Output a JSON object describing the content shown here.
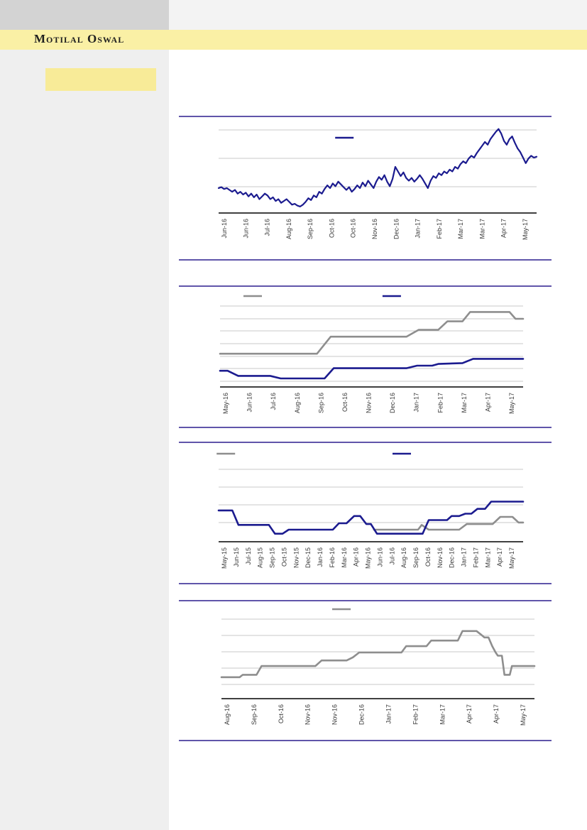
{
  "page": {
    "brand": "Motilal Oswal"
  },
  "colors": {
    "brand_band": "#FAF0A5",
    "top_left_box": "#D3D3D3",
    "top_right_box": "#F3F3F3",
    "sidebar": "#EFEFEF",
    "sidebar_highlight": "#F8EB98",
    "separator": "#6055AA",
    "navy": "#1B1B8F",
    "gray": "#8E8E8E",
    "gridline": "#C8C8C8",
    "axis": "#000000",
    "tick_label": "#3A3A3A"
  },
  "chart_data": [
    {
      "type": "line",
      "title": "",
      "grid": true,
      "y_axis_visible": false,
      "ylim": [
        0,
        100
      ],
      "x_labels": [
        "Jun-16",
        "Jun-16",
        "Jul-16",
        "Aug-16",
        "Sep-16",
        "Oct-16",
        "Oct-16",
        "Nov-16",
        "Dec-16",
        "Jan-17",
        "Feb-17",
        "Mar-17",
        "Mar-17",
        "Apr-17",
        "May-17"
      ],
      "legend": {
        "position": "top-center",
        "markers": [
          {
            "series": "series-navy",
            "color": "#1B1B8F",
            "x_frac": 0.427
          }
        ]
      },
      "series": [
        {
          "name": "series-navy",
          "color": "#1B1B8F",
          "values": [
            27,
            28,
            26,
            27,
            25,
            23,
            25,
            21,
            23,
            20,
            22,
            18,
            21,
            17,
            20,
            15,
            18,
            21,
            19,
            15,
            17,
            13,
            15,
            11,
            13,
            15,
            12,
            9,
            10,
            8,
            7,
            9,
            12,
            16,
            14,
            19,
            17,
            23,
            21,
            26,
            30,
            27,
            32,
            29,
            34,
            31,
            28,
            25,
            28,
            23,
            26,
            30,
            27,
            33,
            29,
            35,
            31,
            27,
            34,
            39,
            36,
            41,
            34,
            29,
            37,
            50,
            45,
            40,
            44,
            38,
            35,
            38,
            34,
            37,
            41,
            37,
            32,
            27,
            35,
            40,
            38,
            43,
            41,
            45,
            43,
            47,
            45,
            50,
            48,
            53,
            56,
            54,
            59,
            62,
            60,
            65,
            69,
            73,
            77,
            74,
            80,
            84,
            88,
            91,
            86,
            78,
            74,
            80,
            83,
            76,
            70,
            66,
            60,
            54,
            59,
            62,
            60,
            61
          ]
        }
      ]
    },
    {
      "type": "step-line",
      "title": "",
      "grid": true,
      "y_axis_visible": false,
      "ylim": [
        0,
        100
      ],
      "x_labels": [
        "May-16",
        "Jun-16",
        "Jul-16",
        "Aug-16",
        "Sep-16",
        "Oct-16",
        "Nov-16",
        "Dec-16",
        "Jan-17",
        "Feb-17",
        "Mar-17",
        "Apr-17",
        "May-17"
      ],
      "legend": {
        "position": "top",
        "markers": [
          {
            "series": "series-gray",
            "color": "#8E8E8E",
            "x_frac": 0.181
          },
          {
            "series": "series-navy",
            "color": "#1B1B8F",
            "x_frac": 0.554
          }
        ]
      },
      "series": [
        {
          "name": "series-gray",
          "color": "#8E8E8E",
          "points": [
            [
              0,
              39
            ],
            [
              0.32,
              39
            ],
            [
              0.365,
              59
            ],
            [
              0.615,
              59
            ],
            [
              0.655,
              67
            ],
            [
              0.72,
              67
            ],
            [
              0.75,
              77
            ],
            [
              0.8,
              77
            ],
            [
              0.825,
              88
            ],
            [
              0.955,
              88
            ],
            [
              0.975,
              80
            ],
            [
              1,
              80
            ]
          ]
        },
        {
          "name": "series-navy",
          "color": "#1B1B8F",
          "points": [
            [
              0,
              19
            ],
            [
              0.025,
              19
            ],
            [
              0.06,
              13
            ],
            [
              0.165,
              13
            ],
            [
              0.2,
              10
            ],
            [
              0.345,
              10
            ],
            [
              0.375,
              22
            ],
            [
              0.615,
              22
            ],
            [
              0.65,
              25
            ],
            [
              0.7,
              25
            ],
            [
              0.72,
              27
            ],
            [
              0.8,
              28
            ],
            [
              0.835,
              33
            ],
            [
              1,
              33
            ]
          ]
        }
      ]
    },
    {
      "type": "step-line",
      "title": "",
      "grid": true,
      "y_axis_visible": false,
      "ylim": [
        0,
        100
      ],
      "x_labels": [
        "May-15",
        "Jun-15",
        "Jul-15",
        "Aug-15",
        "Sep-15",
        "Oct-15",
        "Nov-15",
        "Dec-15",
        "Jan-16",
        "Feb-16",
        "Mar-16",
        "Apr-16",
        "May-16",
        "Jun-16",
        "Jul-16",
        "Aug-16",
        "Sep-16",
        "Oct-16",
        "Nov-16",
        "Dec-16",
        "Jan-17",
        "Feb-17",
        "Mar-17",
        "Apr-17",
        "May-17"
      ],
      "legend": {
        "position": "top",
        "markers": [
          {
            "series": "series-gray",
            "color": "#8E8E8E",
            "x_frac": 0.109
          },
          {
            "series": "series-navy",
            "color": "#1B1B8F",
            "x_frac": 0.581
          }
        ]
      },
      "series": [
        {
          "name": "series-gray",
          "color": "#8E8E8E",
          "points": [
            [
              0.51,
              15
            ],
            [
              0.655,
              15
            ],
            [
              0.667,
              21
            ],
            [
              0.69,
              15
            ],
            [
              0.79,
              15
            ],
            [
              0.815,
              22
            ],
            [
              0.9,
              22
            ],
            [
              0.925,
              31
            ],
            [
              0.965,
              31
            ],
            [
              0.985,
              24
            ],
            [
              1,
              24
            ]
          ]
        },
        {
          "name": "series-navy",
          "color": "#1B1B8F",
          "points": [
            [
              0,
              39
            ],
            [
              0.045,
              39
            ],
            [
              0.065,
              21
            ],
            [
              0.165,
              21
            ],
            [
              0.185,
              10
            ],
            [
              0.21,
              10
            ],
            [
              0.23,
              15
            ],
            [
              0.375,
              15
            ],
            [
              0.395,
              23
            ],
            [
              0.42,
              23
            ],
            [
              0.445,
              32
            ],
            [
              0.465,
              32
            ],
            [
              0.485,
              22
            ],
            [
              0.5,
              22
            ],
            [
              0.52,
              10
            ],
            [
              0.67,
              10
            ],
            [
              0.69,
              27
            ],
            [
              0.75,
              27
            ],
            [
              0.765,
              32
            ],
            [
              0.79,
              32
            ],
            [
              0.81,
              35
            ],
            [
              0.83,
              35
            ],
            [
              0.85,
              41
            ],
            [
              0.875,
              41
            ],
            [
              0.895,
              50
            ],
            [
              1,
              50
            ]
          ]
        }
      ]
    },
    {
      "type": "step-line",
      "title": "",
      "grid": true,
      "y_axis_visible": false,
      "ylim": [
        0,
        100
      ],
      "x_labels": [
        "Aug-16",
        "Sep-16",
        "Oct-16",
        "Nov-16",
        "Nov-16",
        "Dec-16",
        "Jan-17",
        "Feb-17",
        "Mar-17",
        "Apr-17",
        "Apr-17",
        "May-17"
      ],
      "legend": {
        "position": "top-center",
        "markers": [
          {
            "series": "series-gray",
            "color": "#8E8E8E",
            "x_frac": 0.419
          }
        ]
      },
      "series": [
        {
          "name": "series-gray",
          "color": "#8E8E8E",
          "points": [
            [
              0,
              27
            ],
            [
              0.058,
              27
            ],
            [
              0.068,
              30
            ],
            [
              0.112,
              30
            ],
            [
              0.128,
              41
            ],
            [
              0.3,
              41
            ],
            [
              0.32,
              48
            ],
            [
              0.4,
              48
            ],
            [
              0.42,
              52
            ],
            [
              0.44,
              58
            ],
            [
              0.575,
              58
            ],
            [
              0.59,
              66
            ],
            [
              0.655,
              66
            ],
            [
              0.67,
              73
            ],
            [
              0.755,
              73
            ],
            [
              0.77,
              85
            ],
            [
              0.815,
              85
            ],
            [
              0.828,
              81
            ],
            [
              0.84,
              77
            ],
            [
              0.853,
              77
            ],
            [
              0.865,
              66
            ],
            [
              0.876,
              58
            ],
            [
              0.883,
              54
            ],
            [
              0.896,
              54
            ],
            [
              0.904,
              30
            ],
            [
              0.921,
              30
            ],
            [
              0.928,
              41
            ],
            [
              1,
              41
            ]
          ]
        }
      ]
    }
  ]
}
